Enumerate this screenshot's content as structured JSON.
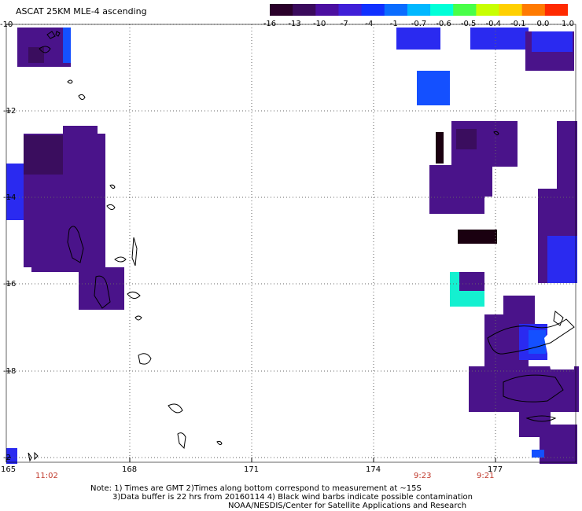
{
  "title": "ASCAT 25KM MLE-4 ascending",
  "colorbar": {
    "colors": [
      "#2a002a",
      "#3a0a5c",
      "#4b0fa0",
      "#3f1fd8",
      "#1030ff",
      "#0a6cff",
      "#00b8ff",
      "#00ffd8",
      "#48ff48",
      "#c8ff00",
      "#ffd000",
      "#ff7a00",
      "#ff2a00"
    ],
    "labels": [
      "-16",
      "-13",
      "-10",
      "-7",
      "-4",
      "-1",
      "-0.7",
      "-0.6",
      "-0.5",
      "-0.4",
      "-0.1",
      "0.0",
      "1.0"
    ]
  },
  "axes": {
    "lat_labels": [
      "-10",
      "-12",
      "-14",
      "-16",
      "-18",
      "-2"
    ],
    "lon_labels": [
      "165",
      "168",
      "171",
      "174",
      "177"
    ]
  },
  "times": [
    "11:02",
    "9:23",
    "9:21"
  ],
  "notes": {
    "line1": "Note: 1) Times are GMT 2)Times along bottom correspond to measurement at ~15S",
    "line2": "3)Data buffer is 22 hrs from 20160114 4) Black wind barbs indicate possible contamination",
    "line3": "NOAA/NESDIS/Center for Satellite Applications and Research"
  },
  "style": {
    "purple": "#4a138a",
    "dark_purple": "#3a0d5e",
    "blue": "#2a2af0",
    "bright_blue": "#1450ff",
    "cyan": "#14f0d0",
    "black": "#1a0010"
  }
}
